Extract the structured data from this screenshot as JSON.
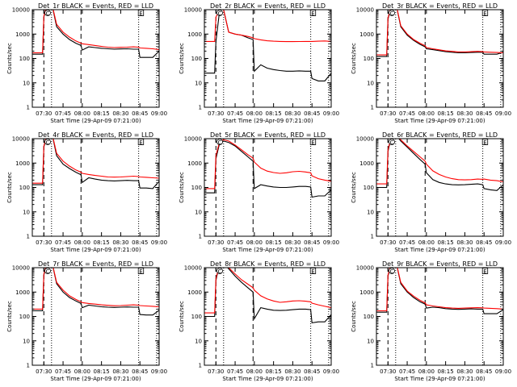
{
  "figure": {
    "ylabel": "Counts/sec",
    "xlabel": "Start Time (29-Apr-09 07:21:00)",
    "x_ticks": [
      "07:30",
      "07:45",
      "08:00",
      "08:15",
      "08:30",
      "08:45",
      "09:00"
    ],
    "y_ticks": [
      "1",
      "10",
      "100",
      "1000",
      "10000"
    ],
    "marker_C": "C",
    "marker_E": "E"
  },
  "chart_data": [
    {
      "type": "line",
      "title": "Det_1r BLACK = Events, RED = LLD",
      "xlabel": "Start Time (29-Apr-09 07:21:00)",
      "ylabel": "Counts/sec",
      "xlim": [
        "07:21",
        "09:00"
      ],
      "ylim": [
        1,
        10000
      ],
      "yscale": "log",
      "x": [
        "07:21",
        "07:25",
        "07:29",
        "07:30",
        "07:33",
        "07:36",
        "07:40",
        "07:45",
        "07:50",
        "07:55",
        "07:59",
        "08:00",
        "08:05",
        "08:10",
        "08:15",
        "08:20",
        "08:25",
        "08:30",
        "08:35",
        "08:40",
        "08:44",
        "08:45",
        "08:50",
        "08:55",
        "09:00"
      ],
      "series": [
        {
          "name": "Events",
          "color": "#000000",
          "values": [
            150,
            150,
            150,
            5000,
            20000,
            20000,
            2000,
            1000,
            600,
            420,
            340,
            220,
            300,
            280,
            260,
            250,
            240,
            245,
            250,
            240,
            240,
            110,
            110,
            110,
            200
          ]
        },
        {
          "name": "LLD",
          "color": "#ff0000",
          "values": [
            170,
            170,
            170,
            5500,
            20000,
            20000,
            2500,
            1200,
            750,
            520,
            420,
            400,
            370,
            340,
            310,
            290,
            280,
            285,
            290,
            300,
            290,
            270,
            260,
            250,
            230
          ]
        }
      ]
    },
    {
      "type": "line",
      "title": "Det_2r BLACK = Events, RED = LLD",
      "xlabel": "Start Time (29-Apr-09 07:21:00)",
      "ylabel": "Counts/sec",
      "xlim": [
        "07:21",
        "09:00"
      ],
      "ylim": [
        1,
        10000
      ],
      "yscale": "log",
      "x": [
        "07:21",
        "07:25",
        "07:29",
        "07:30",
        "07:33",
        "07:36",
        "07:40",
        "07:45",
        "07:50",
        "07:55",
        "07:59",
        "08:00",
        "08:05",
        "08:10",
        "08:15",
        "08:20",
        "08:25",
        "08:30",
        "08:35",
        "08:40",
        "08:44",
        "08:45",
        "08:50",
        "08:55",
        "09:00"
      ],
      "series": [
        {
          "name": "Events",
          "color": "#000000",
          "values": [
            25,
            25,
            25,
            500,
            10000,
            10000,
            1200,
            1000,
            900,
            700,
            600,
            30,
            55,
            40,
            35,
            32,
            30,
            30,
            31,
            30,
            30,
            15,
            12,
            12,
            25
          ]
        },
        {
          "name": "LLD",
          "color": "#ff0000",
          "values": [
            500,
            500,
            500,
            5000,
            10000,
            10000,
            1200,
            1000,
            900,
            800,
            700,
            650,
            580,
            530,
            510,
            500,
            490,
            490,
            495,
            500,
            500,
            500,
            510,
            520,
            500
          ]
        }
      ]
    },
    {
      "type": "line",
      "title": "Det_3r BLACK = Events, RED = LLD",
      "xlabel": "Start Time (29-Apr-09 07:21:00)",
      "ylabel": "Counts/sec",
      "xlim": [
        "07:21",
        "09:00"
      ],
      "ylim": [
        1,
        10000
      ],
      "yscale": "log",
      "x": [
        "07:21",
        "07:25",
        "07:29",
        "07:30",
        "07:33",
        "07:36",
        "07:40",
        "07:45",
        "07:50",
        "07:55",
        "07:59",
        "08:00",
        "08:05",
        "08:10",
        "08:15",
        "08:20",
        "08:25",
        "08:30",
        "08:35",
        "08:40",
        "08:44",
        "08:45",
        "08:50",
        "08:55",
        "09:00"
      ],
      "series": [
        {
          "name": "Events",
          "color": "#000000",
          "values": [
            120,
            120,
            120,
            4000,
            20000,
            20000,
            2000,
            900,
            550,
            380,
            300,
            250,
            230,
            210,
            190,
            180,
            170,
            170,
            175,
            180,
            180,
            150,
            150,
            150,
            180
          ]
        },
        {
          "name": "LLD",
          "color": "#ff0000",
          "values": [
            140,
            140,
            140,
            4500,
            20000,
            20000,
            2200,
            1000,
            600,
            420,
            330,
            280,
            250,
            225,
            205,
            195,
            185,
            185,
            190,
            195,
            190,
            185,
            180,
            175,
            170
          ]
        }
      ]
    },
    {
      "type": "line",
      "title": "Det_4r BLACK = Events, RED = LLD",
      "xlabel": "Start Time (29-Apr-09 07:21:00)",
      "ylabel": "Counts/sec",
      "xlim": [
        "07:21",
        "09:00"
      ],
      "ylim": [
        1,
        10000
      ],
      "yscale": "log",
      "x": [
        "07:21",
        "07:25",
        "07:29",
        "07:30",
        "07:33",
        "07:36",
        "07:40",
        "07:45",
        "07:50",
        "07:55",
        "07:59",
        "08:00",
        "08:05",
        "08:10",
        "08:15",
        "08:20",
        "08:25",
        "08:30",
        "08:35",
        "08:40",
        "08:44",
        "08:45",
        "08:50",
        "08:55",
        "09:00"
      ],
      "series": [
        {
          "name": "Events",
          "color": "#000000",
          "values": [
            130,
            130,
            130,
            4500,
            20000,
            20000,
            2000,
            900,
            600,
            420,
            330,
            160,
            250,
            220,
            200,
            190,
            185,
            190,
            195,
            190,
            190,
            95,
            95,
            90,
            180
          ]
        },
        {
          "name": "LLD",
          "color": "#ff0000",
          "values": [
            150,
            150,
            150,
            5000,
            20000,
            20000,
            2500,
            1200,
            750,
            520,
            420,
            380,
            340,
            310,
            290,
            270,
            265,
            270,
            280,
            290,
            280,
            270,
            260,
            250,
            240
          ]
        }
      ]
    },
    {
      "type": "line",
      "title": "Det_5r BLACK = Events, RED = LLD",
      "xlabel": "Start Time (29-Apr-09 07:21:00)",
      "ylabel": "Counts/sec",
      "xlim": [
        "07:21",
        "09:00"
      ],
      "ylim": [
        1,
        10000
      ],
      "yscale": "log",
      "x": [
        "07:21",
        "07:25",
        "07:29",
        "07:30",
        "07:33",
        "07:36",
        "07:40",
        "07:45",
        "07:50",
        "07:55",
        "07:59",
        "08:00",
        "08:05",
        "08:10",
        "08:15",
        "08:20",
        "08:25",
        "08:30",
        "08:35",
        "08:40",
        "08:44",
        "08:45",
        "08:50",
        "08:55",
        "09:00"
      ],
      "series": [
        {
          "name": "Events",
          "color": "#000000",
          "values": [
            60,
            60,
            60,
            1500,
            7000,
            8000,
            7000,
            5000,
            3000,
            1800,
            1200,
            90,
            130,
            115,
            105,
            100,
            100,
            105,
            110,
            110,
            105,
            40,
            45,
            45,
            80
          ]
        },
        {
          "name": "LLD",
          "color": "#ff0000",
          "values": [
            90,
            90,
            90,
            2000,
            8000,
            9000,
            8000,
            5500,
            3500,
            2200,
            1600,
            1100,
            620,
            470,
            410,
            380,
            400,
            440,
            460,
            430,
            400,
            300,
            230,
            200,
            180
          ]
        }
      ]
    },
    {
      "type": "line",
      "title": "Det_6r BLACK = Events, RED = LLD",
      "xlabel": "Start Time (29-Apr-09 07:21:00)",
      "ylabel": "Counts/sec",
      "xlim": [
        "07:21",
        "09:00"
      ],
      "ylim": [
        1,
        10000
      ],
      "yscale": "log",
      "x": [
        "07:21",
        "07:25",
        "07:29",
        "07:30",
        "07:33",
        "07:36",
        "07:40",
        "07:45",
        "07:50",
        "07:55",
        "07:59",
        "08:00",
        "08:05",
        "08:10",
        "08:15",
        "08:20",
        "08:25",
        "08:30",
        "08:35",
        "08:40",
        "08:44",
        "08:45",
        "08:50",
        "08:55",
        "09:00"
      ],
      "series": [
        {
          "name": "Events",
          "color": "#000000",
          "values": [
            100,
            100,
            100,
            3000,
            15000,
            15000,
            8000,
            4500,
            2500,
            1400,
            900,
            400,
            210,
            160,
            140,
            130,
            128,
            130,
            135,
            140,
            130,
            90,
            80,
            75,
            130
          ]
        },
        {
          "name": "LLD",
          "color": "#ff0000",
          "values": [
            140,
            140,
            140,
            3500,
            15000,
            15000,
            9000,
            5000,
            3000,
            1800,
            1200,
            900,
            480,
            340,
            270,
            230,
            210,
            205,
            210,
            220,
            215,
            220,
            200,
            190,
            170
          ]
        }
      ]
    },
    {
      "type": "line",
      "title": "Det_7r BLACK = Events, RED = LLD",
      "xlabel": "Start Time (29-Apr-09 07:21:00)",
      "ylabel": "Counts/sec",
      "xlim": [
        "07:21",
        "09:00"
      ],
      "ylim": [
        1,
        10000
      ],
      "yscale": "log",
      "x": [
        "07:21",
        "07:25",
        "07:29",
        "07:30",
        "07:33",
        "07:36",
        "07:40",
        "07:45",
        "07:50",
        "07:55",
        "07:59",
        "08:00",
        "08:05",
        "08:10",
        "08:15",
        "08:20",
        "08:25",
        "08:30",
        "08:35",
        "08:40",
        "08:44",
        "08:45",
        "08:50",
        "08:55",
        "09:00"
      ],
      "series": [
        {
          "name": "Events",
          "color": "#000000",
          "values": [
            170,
            170,
            170,
            5000,
            20000,
            20000,
            2200,
            1000,
            600,
            430,
            340,
            230,
            290,
            270,
            250,
            240,
            235,
            240,
            245,
            240,
            240,
            120,
            115,
            115,
            180
          ]
        },
        {
          "name": "LLD",
          "color": "#ff0000",
          "values": [
            200,
            200,
            200,
            5500,
            20000,
            20000,
            2500,
            1200,
            700,
            500,
            400,
            370,
            340,
            320,
            300,
            285,
            275,
            280,
            290,
            300,
            290,
            280,
            270,
            260,
            250
          ]
        }
      ]
    },
    {
      "type": "line",
      "title": "Det_8r BLACK = Events, RED = LLD",
      "xlabel": "Start Time (29-Apr-09 07:21:00)",
      "ylabel": "Counts/sec",
      "xlim": [
        "07:21",
        "09:00"
      ],
      "ylim": [
        1,
        10000
      ],
      "yscale": "log",
      "x": [
        "07:21",
        "07:25",
        "07:29",
        "07:30",
        "07:33",
        "07:36",
        "07:40",
        "07:45",
        "07:50",
        "07:55",
        "07:59",
        "08:00",
        "08:05",
        "08:10",
        "08:15",
        "08:20",
        "08:25",
        "08:30",
        "08:35",
        "08:40",
        "08:44",
        "08:45",
        "08:50",
        "08:55",
        "09:00"
      ],
      "series": [
        {
          "name": "Events",
          "color": "#000000",
          "values": [
            100,
            100,
            100,
            3000,
            15000,
            15000,
            9000,
            4500,
            2500,
            1500,
            1000,
            80,
            230,
            200,
            180,
            175,
            180,
            190,
            200,
            200,
            190,
            55,
            60,
            60,
            120
          ]
        },
        {
          "name": "LLD",
          "color": "#ff0000",
          "values": [
            140,
            140,
            140,
            3500,
            15000,
            15000,
            10000,
            5500,
            3200,
            2100,
            1500,
            1200,
            700,
            520,
            430,
            380,
            400,
            430,
            440,
            420,
            400,
            350,
            300,
            260,
            230
          ]
        }
      ]
    },
    {
      "type": "line",
      "title": "Det_9r BLACK = Events, RED = LLD",
      "xlabel": "Start Time (29-Apr-09 07:21:00)",
      "ylabel": "Counts/sec",
      "xlim": [
        "07:21",
        "09:00"
      ],
      "ylim": [
        1,
        10000
      ],
      "yscale": "log",
      "x": [
        "07:21",
        "07:25",
        "07:29",
        "07:30",
        "07:33",
        "07:36",
        "07:40",
        "07:45",
        "07:50",
        "07:55",
        "07:59",
        "08:00",
        "08:05",
        "08:10",
        "08:15",
        "08:20",
        "08:25",
        "08:30",
        "08:35",
        "08:40",
        "08:44",
        "08:45",
        "08:50",
        "08:55",
        "09:00"
      ],
      "series": [
        {
          "name": "Events",
          "color": "#000000",
          "values": [
            150,
            150,
            150,
            4500,
            20000,
            20000,
            2200,
            1000,
            600,
            400,
            320,
            220,
            240,
            230,
            210,
            200,
            195,
            200,
            205,
            200,
            200,
            130,
            130,
            130,
            190
          ]
        },
        {
          "name": "LLD",
          "color": "#ff0000",
          "values": [
            170,
            170,
            170,
            5000,
            20000,
            20000,
            2500,
            1100,
            680,
            460,
            360,
            300,
            270,
            250,
            230,
            220,
            215,
            220,
            225,
            230,
            225,
            220,
            215,
            210,
            200
          ]
        }
      ]
    }
  ]
}
